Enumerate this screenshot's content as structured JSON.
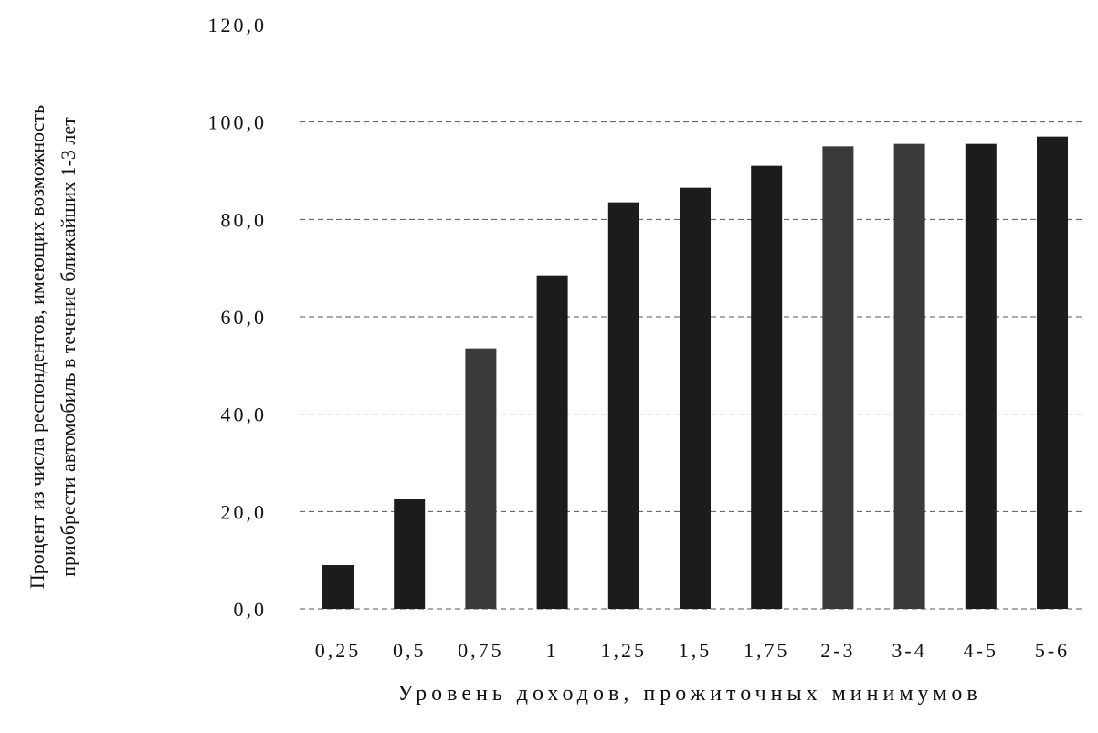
{
  "chart_data": {
    "type": "bar",
    "categories": [
      "0,25",
      "0,5",
      "0,75",
      "1",
      "1,25",
      "1,5",
      "1,75",
      "2-3",
      "3-4",
      "4-5",
      "5-6"
    ],
    "values": [
      9.0,
      22.5,
      53.5,
      68.5,
      83.5,
      86.5,
      91.0,
      95.0,
      95.5,
      95.5,
      97.0
    ],
    "xlabel": "Уровень доходов, прожиточных минимумов",
    "ylabel_lines": [
      "Процент из числа респондентов, имеющих возможность",
      "приобрести автомобиль в течение ближайших 1-3 лет"
    ],
    "ylim": [
      0,
      120
    ],
    "yticks": [
      "0,0",
      "20,0",
      "40,0",
      "60,0",
      "80,0",
      "100,0",
      "120,0"
    ],
    "grid": true,
    "bar_color": "#1c1c1c"
  }
}
